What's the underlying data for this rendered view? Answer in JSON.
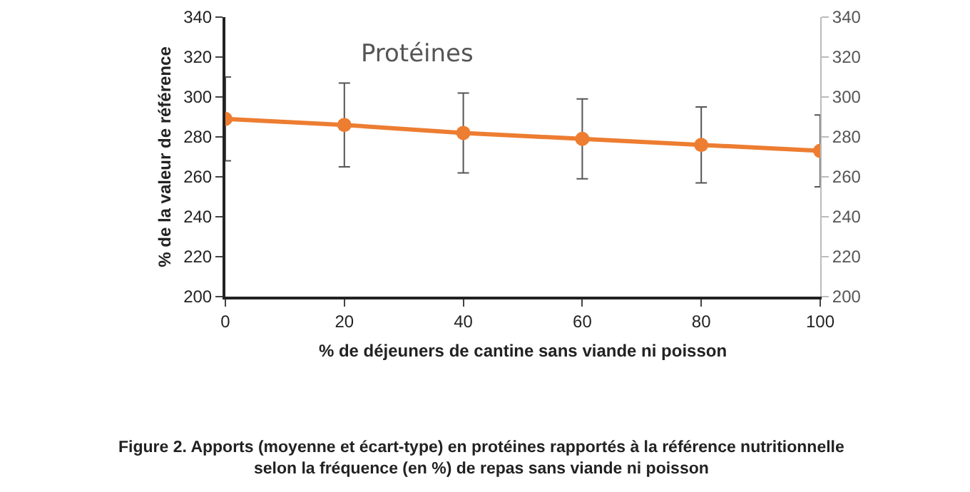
{
  "chart_data": {
    "type": "line",
    "title": "Protéines",
    "xlabel": "% de déjeuners de cantine sans viande ni poisson",
    "ylabel": "% de la valeur de référence",
    "x": [
      0,
      20,
      40,
      60,
      80,
      100
    ],
    "series": [
      {
        "color": "#ed7d31",
        "values": [
          289,
          286,
          282,
          279,
          276,
          273
        ],
        "errors": [
          21,
          21,
          20,
          20,
          19,
          18
        ]
      }
    ],
    "xlim": [
      0,
      100
    ],
    "xticks": [
      0,
      20,
      40,
      60,
      80,
      100
    ],
    "ylim": [
      200,
      340
    ],
    "yticks": [
      200,
      220,
      240,
      260,
      280,
      300,
      320,
      340
    ],
    "y2lim": [
      200,
      340
    ],
    "y2ticks": [
      200,
      220,
      240,
      260,
      280,
      300,
      320,
      340
    ],
    "marker": "circle",
    "line_style": "solid",
    "grid": false,
    "annotations": [
      "Figure 2. Apports (moyenne et écart-type) en protéines rapportés à la référence nutritionnelle selon la fréquence (en %) de repas sans viande ni poisson"
    ]
  }
}
